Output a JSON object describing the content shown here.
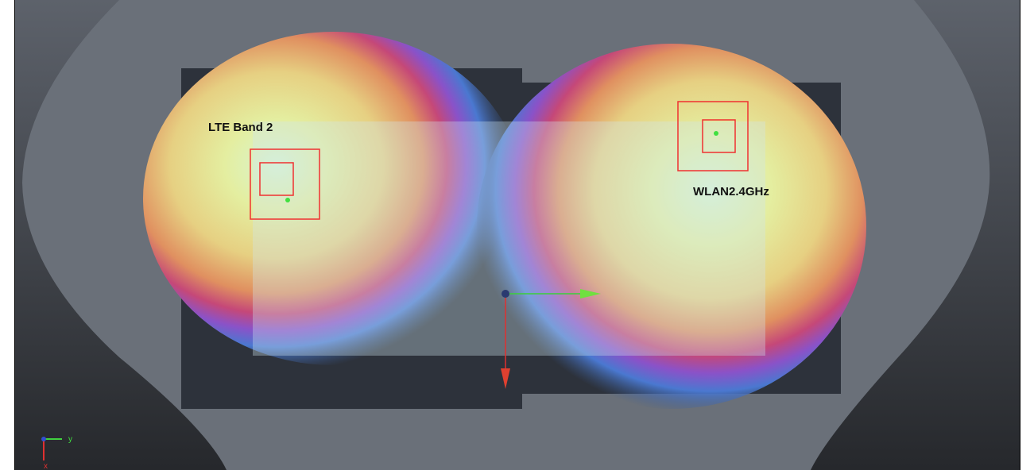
{
  "labels": {
    "lte": "LTE Band 2",
    "wlan": "WLAN2.4GHz"
  },
  "axes": {
    "y": "y",
    "x": "x"
  }
}
